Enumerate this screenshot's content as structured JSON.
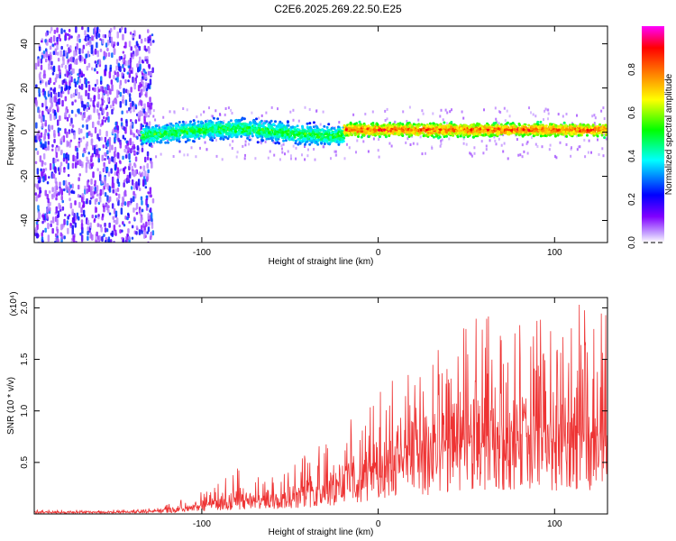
{
  "title": "C2E6.2025.269.22.50.E25",
  "chart_data": [
    {
      "type": "heatmap",
      "title": "C2E6.2025.269.22.50.E25",
      "xlabel": "Height of straight line (km)",
      "ylabel": "Frequency (Hz)",
      "xlim": [
        -195,
        130
      ],
      "ylim": [
        -50,
        48
      ],
      "x_ticks": [
        -100,
        0,
        100
      ],
      "x_tick_labels": [
        "-100",
        "0",
        "100"
      ],
      "y_ticks": [
        -40,
        -20,
        0,
        20,
        40
      ],
      "y_tick_labels": [
        "-40",
        "-20",
        "0",
        "20",
        "40"
      ],
      "colorbar": {
        "label": "Normalized spectral amplitude",
        "range": [
          0,
          1
        ],
        "ticks": [
          0.0,
          0.2,
          0.4,
          0.6,
          0.8
        ],
        "tick_labels": [
          "0.0",
          "0.2",
          "0.4",
          "0.6",
          "0.8"
        ],
        "colors": [
          "#ffffff",
          "#c9a8ff",
          "#8000ff",
          "#0000ff",
          "#00ffff",
          "#00ff00",
          "#ffff00",
          "#ff8000",
          "#ff0000",
          "#ff00ff"
        ]
      },
      "regions": [
        {
          "x_range": [
            -195,
            -128
          ],
          "freq_range": [
            -50,
            48
          ],
          "amplitude": [
            0.05,
            0.3
          ],
          "description": "broadband noise"
        },
        {
          "x_range": [
            -135,
            -20
          ],
          "freq_center": 0,
          "freq_halfwidth": 6,
          "amplitude": [
            0.2,
            0.6
          ]
        },
        {
          "x_range": [
            -20,
            130
          ],
          "freq_center": 1,
          "freq_halfwidth": 4,
          "amplitude": [
            0.4,
            0.95
          ]
        }
      ]
    },
    {
      "type": "line",
      "xlabel": "Height of straight line (km)",
      "ylabel": "SNR (10 * v/v)",
      "y_multiplier_label": "(x10⁴)",
      "xlim": [
        -195,
        130
      ],
      "ylim": [
        0,
        2.1
      ],
      "x_ticks": [
        -100,
        0,
        100
      ],
      "x_tick_labels": [
        "-100",
        "0",
        "100"
      ],
      "y_ticks": [
        0.5,
        1.0,
        1.5,
        2.0
      ],
      "y_tick_labels": [
        "0.5",
        "1.0",
        "1.5",
        "2.0"
      ],
      "series": [
        {
          "name": "SNR",
          "color": "#ee3333",
          "envelope_x": [
            -195,
            -150,
            -125,
            -110,
            -100,
            -90,
            -80,
            -70,
            -60,
            -50,
            -40,
            -30,
            -20,
            -10,
            0,
            10,
            20,
            30,
            40,
            50,
            60,
            70,
            80,
            90,
            100,
            110,
            120,
            130
          ],
          "envelope_mean": [
            0.02,
            0.02,
            0.03,
            0.06,
            0.09,
            0.12,
            0.16,
            0.14,
            0.18,
            0.22,
            0.25,
            0.3,
            0.35,
            0.4,
            0.55,
            0.62,
            0.68,
            0.72,
            0.78,
            0.8,
            0.82,
            0.85,
            0.85,
            0.87,
            0.88,
            0.9,
            0.9,
            0.9
          ],
          "envelope_peak": [
            0.04,
            0.04,
            0.06,
            0.15,
            0.22,
            0.3,
            0.46,
            0.35,
            0.4,
            0.45,
            0.6,
            0.7,
            0.85,
            1.1,
            1.2,
            1.35,
            1.45,
            1.6,
            1.6,
            1.85,
            2.0,
            1.75,
            1.85,
            1.9,
            1.9,
            2.1,
            1.95,
            1.95
          ]
        }
      ]
    }
  ]
}
